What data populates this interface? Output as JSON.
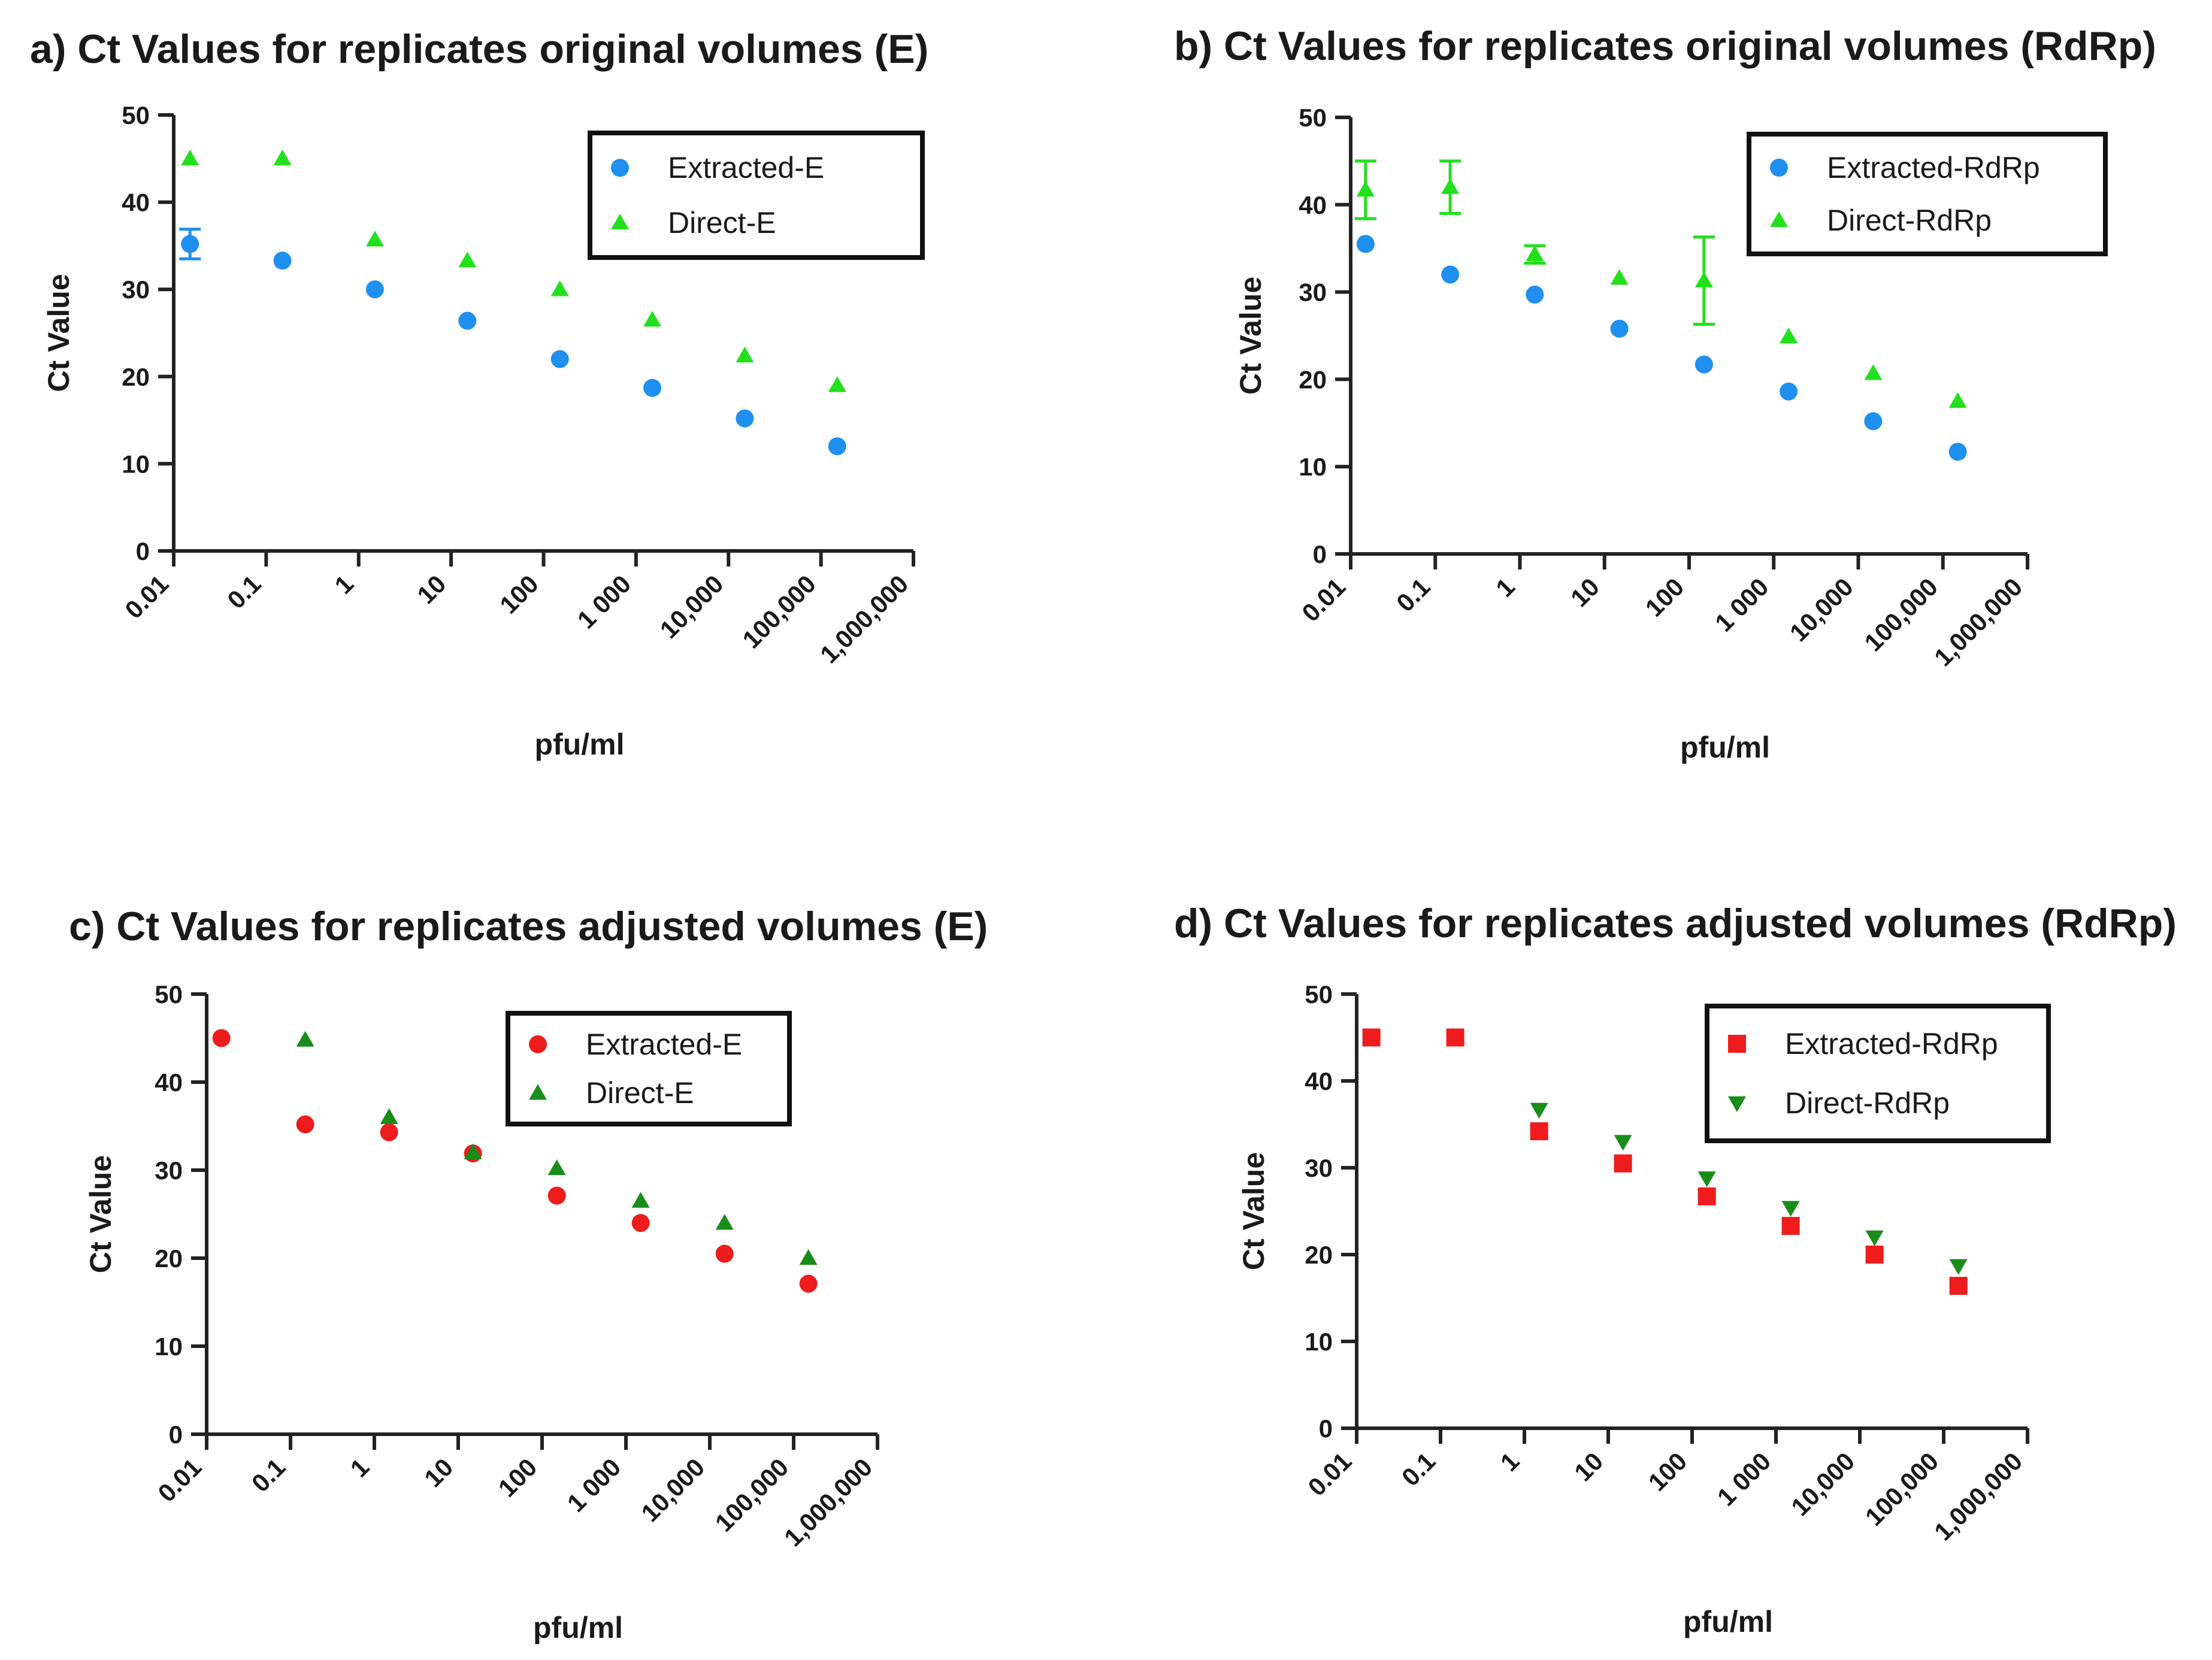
{
  "chart_data": [
    {
      "type": "scatter",
      "title": "a) Ct Values for replicates original volumes (E)",
      "xlabel": "pfu/ml",
      "ylabel": "Ct Value",
      "xscale": "log",
      "xlim": [
        0.01,
        1000000
      ],
      "ylim": [
        0,
        50
      ],
      "yticks": [
        0,
        10,
        20,
        30,
        40,
        50
      ],
      "xticks": [
        0.01,
        0.1,
        1,
        10,
        100,
        1000,
        10000,
        100000,
        1000000
      ],
      "xtick_labels": [
        "0.01",
        "0.1",
        "1",
        "10",
        "100",
        "1 000",
        "10,000",
        "100,000",
        "1,000,000"
      ],
      "legend_position": "top-right",
      "series": [
        {
          "name": "Extracted-E",
          "color": "#1f8ff0",
          "marker": "circle",
          "x": [
            0.015,
            0.15,
            1.5,
            15,
            150,
            1500,
            15000,
            150000
          ],
          "y": [
            35.2,
            33.3,
            30.0,
            26.4,
            22.0,
            18.7,
            15.2,
            12.0
          ],
          "error": [
            1.7,
            0,
            0,
            0,
            0,
            0,
            0,
            0
          ]
        },
        {
          "name": "Direct-E",
          "color": "#22e01c",
          "marker": "triangle-up",
          "x": [
            0.015,
            0.15,
            1.5,
            15,
            150,
            1500,
            15000,
            150000
          ],
          "y": [
            45.0,
            45.0,
            35.7,
            33.3,
            30.0,
            26.5,
            22.4,
            19.0
          ],
          "error": [
            0,
            0,
            0,
            0,
            0,
            0,
            0,
            0
          ]
        }
      ]
    },
    {
      "type": "scatter",
      "title": "b) Ct Values for replicates original volumes (RdRp)",
      "xlabel": "pfu/ml",
      "ylabel": "Ct Value",
      "xscale": "log",
      "xlim": [
        0.01,
        1000000
      ],
      "ylim": [
        0,
        50
      ],
      "yticks": [
        0,
        10,
        20,
        30,
        40,
        50
      ],
      "xticks": [
        0.01,
        0.1,
        1,
        10,
        100,
        1000,
        10000,
        100000,
        1000000
      ],
      "xtick_labels": [
        "0.01",
        "0.1",
        "1",
        "10",
        "100",
        "1 000",
        "10,000",
        "100,000",
        "1,000,000"
      ],
      "legend_position": "top-right",
      "series": [
        {
          "name": "Extracted-RdRp",
          "color": "#1f8ff0",
          "marker": "circle",
          "x": [
            0.015,
            0.15,
            1.5,
            15,
            150,
            1500,
            15000,
            150000
          ],
          "y": [
            35.5,
            32.0,
            29.7,
            25.8,
            21.7,
            18.6,
            15.2,
            11.7
          ],
          "error": [
            0,
            0,
            0,
            0,
            0,
            0,
            0,
            0
          ]
        },
        {
          "name": "Direct-RdRp",
          "color": "#22e01c",
          "marker": "triangle-up",
          "x": [
            0.015,
            0.15,
            1.5,
            15,
            150,
            1500,
            15000,
            150000
          ],
          "y": [
            41.7,
            42.0,
            34.3,
            31.6,
            31.3,
            24.9,
            20.7,
            17.5
          ],
          "error": [
            3.3,
            3.0,
            1.0,
            0,
            5.0,
            0,
            0,
            0
          ]
        }
      ]
    },
    {
      "type": "scatter",
      "title": "c) Ct Values for replicates adjusted volumes (E)",
      "xlabel": "pfu/ml",
      "ylabel": "Ct Value",
      "xscale": "log",
      "xlim": [
        0.01,
        1000000
      ],
      "ylim": [
        0,
        50
      ],
      "yticks": [
        0,
        10,
        20,
        30,
        40,
        50
      ],
      "xticks": [
        0.01,
        0.1,
        1,
        10,
        100,
        1000,
        10000,
        100000,
        1000000
      ],
      "xtick_labels": [
        "0.01",
        "0.1",
        "1",
        "10",
        "100",
        "1 000",
        "10,000",
        "100,000",
        "1,000,000"
      ],
      "legend_position": "top-right",
      "series": [
        {
          "name": "Extracted-E",
          "color": "#ee1c1c",
          "marker": "circle",
          "x": [
            0.015,
            0.15,
            1.5,
            15,
            150,
            1500,
            15000,
            150000
          ],
          "y": [
            45.0,
            35.2,
            34.3,
            31.9,
            27.1,
            24.0,
            20.5,
            17.1
          ],
          "error": [
            0,
            0,
            0,
            0,
            0,
            0,
            0,
            0
          ]
        },
        {
          "name": "Direct-E",
          "color": "#1a8c1a",
          "marker": "triangle-up",
          "x": [
            0.15,
            1.5,
            15,
            150,
            1500,
            15000,
            150000
          ],
          "y": [
            44.8,
            36.0,
            32.0,
            30.2,
            26.5,
            24.0,
            20.0
          ],
          "error": [
            0,
            0,
            0,
            0,
            0,
            0,
            0
          ]
        }
      ]
    },
    {
      "type": "scatter",
      "title": "d) Ct Values for replicates adjusted volumes (RdRp)",
      "xlabel": "pfu/ml",
      "ylabel": "Ct Value",
      "xscale": "log",
      "xlim": [
        0.01,
        1000000
      ],
      "ylim": [
        0,
        50
      ],
      "yticks": [
        0,
        10,
        20,
        30,
        40,
        50
      ],
      "xticks": [
        0.01,
        0.1,
        1,
        10,
        100,
        1000,
        10000,
        100000,
        1000000
      ],
      "xtick_labels": [
        "0.01",
        "0.1",
        "1",
        "10",
        "100",
        "1 000",
        "10,000",
        "100,000",
        "1,000,000"
      ],
      "legend_position": "top-right",
      "series": [
        {
          "name": "Extracted-RdRp",
          "color": "#ee1c1c",
          "marker": "square",
          "x": [
            0.015,
            0.15,
            1.5,
            15,
            150,
            1500,
            15000,
            150000
          ],
          "y": [
            45.0,
            45.0,
            34.2,
            30.5,
            26.7,
            23.3,
            20.0,
            16.4
          ],
          "error": [
            0,
            0,
            0,
            0,
            0,
            0,
            0,
            0
          ]
        },
        {
          "name": "Direct-RdRp",
          "color": "#1a8c1a",
          "marker": "triangle-down",
          "x": [
            1.5,
            15,
            150,
            1500,
            15000,
            150000
          ],
          "y": [
            36.7,
            33.0,
            28.8,
            25.4,
            22.0,
            18.7
          ],
          "error": [
            0,
            0,
            0,
            0,
            0,
            0
          ]
        }
      ]
    }
  ]
}
